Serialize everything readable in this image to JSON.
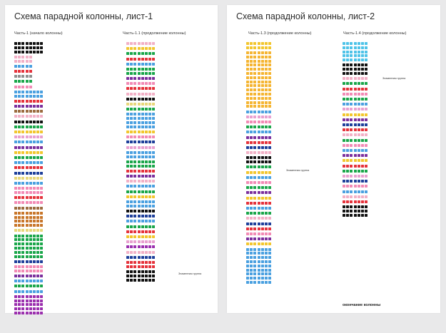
{
  "sheets": [
    {
      "title": "Схема парадной колонны, лист-1",
      "parts": [
        {
          "label": "Часть-1 (начало колонны)"
        },
        {
          "label": "Часть-1.1 (продолжение колонны)"
        }
      ]
    },
    {
      "title": "Схема парадной колонны, лист-2",
      "parts": [
        {
          "label": "Часть-1.3 (продолжение колонны)"
        },
        {
          "label": "Часть-1.4 (продолжение колонны)"
        }
      ]
    }
  ],
  "columns": [
    {
      "sheet": 0,
      "row_groups": [
        {
          "color": "#111111",
          "rows": 3,
          "n": 8
        },
        {
          "color": "#f2b0c6",
          "rows": 2,
          "n": 5
        },
        {
          "color": "#4aa0e0",
          "rows": 1,
          "n": 5
        },
        {
          "color": "#e5323b",
          "rows": 1,
          "n": 5
        },
        {
          "color": "#8f8f8f",
          "rows": 1,
          "n": 5
        },
        {
          "color": "#1aa64a",
          "rows": 1,
          "n": 5
        },
        {
          "color": "#f28ab5",
          "rows": 1,
          "n": 5
        },
        {
          "color": "#4aa0e0",
          "rows": 2,
          "n": 8
        },
        {
          "color": "#e5323b",
          "rows": 1,
          "n": 8
        },
        {
          "color": "#7b2f9d",
          "rows": 1,
          "n": 8
        },
        {
          "color": "#9c6b3f",
          "rows": 1,
          "n": 8
        },
        {
          "color": "#f2b0c6",
          "rows": 1,
          "n": 8
        },
        {
          "color": "#111111",
          "rows": 1,
          "n": 8
        },
        {
          "color": "#1aa64a",
          "rows": 1,
          "n": 8
        },
        {
          "color": "#f2c62e",
          "rows": 1,
          "n": 8
        },
        {
          "color": "#e8a0d0",
          "rows": 1,
          "n": 8
        },
        {
          "color": "#4aa0e0",
          "rows": 1,
          "n": 8
        },
        {
          "color": "#7b2f9d",
          "rows": 1,
          "n": 8
        },
        {
          "color": "#f2c62e",
          "rows": 1,
          "n": 8
        },
        {
          "color": "#1aa64a",
          "rows": 1,
          "n": 8
        },
        {
          "color": "#4aa0e0",
          "rows": 1,
          "n": 8
        },
        {
          "color": "#e5323b",
          "rows": 1,
          "n": 8
        },
        {
          "color": "#1e3f9a",
          "rows": 1,
          "n": 8
        },
        {
          "color": "#e8d77a",
          "rows": 1,
          "n": 8
        },
        {
          "color": "#4aa0e0",
          "rows": 1,
          "n": 8
        },
        {
          "color": "#f28ab5",
          "rows": 2,
          "n": 8
        },
        {
          "color": "#e5323b",
          "rows": 1,
          "n": 8
        },
        {
          "color": "#f28ab5",
          "rows": 1,
          "n": 8
        },
        {
          "color": "#9c6b3f",
          "rows": 1,
          "n": 8
        },
        {
          "color": "#c8762a",
          "rows": 4,
          "n": 8
        },
        {
          "color": "#e8d77a",
          "rows": 1,
          "n": 8
        },
        {
          "color": "#1aa64a",
          "rows": 6,
          "n": 8
        },
        {
          "color": "#1e3f9a",
          "rows": 1,
          "n": 8
        },
        {
          "color": "#f28ab5",
          "rows": 2,
          "n": 8
        },
        {
          "color": "#7b2f9d",
          "rows": 1,
          "n": 8
        },
        {
          "color": "#4aa0e0",
          "rows": 1,
          "n": 8
        },
        {
          "color": "#1aa64a",
          "rows": 1,
          "n": 8
        },
        {
          "color": "#4aa0e0",
          "rows": 1,
          "n": 8
        },
        {
          "color": "#9b2fae",
          "rows": 5,
          "n": 8
        }
      ]
    },
    {
      "sheet": 0,
      "row_groups": [
        {
          "color": "#f2b0c6",
          "rows": 1,
          "n": 8
        },
        {
          "color": "#f2c62e",
          "rows": 1,
          "n": 8
        },
        {
          "color": "#1aa64a",
          "rows": 1,
          "n": 8
        },
        {
          "color": "#e5323b",
          "rows": 1,
          "n": 8
        },
        {
          "color": "#4aa0e0",
          "rows": 1,
          "n": 8
        },
        {
          "color": "#1aa64a",
          "rows": 2,
          "n": 8
        },
        {
          "color": "#7b2f9d",
          "rows": 1,
          "n": 8
        },
        {
          "color": "#f28ab5",
          "rows": 1,
          "n": 8
        },
        {
          "color": "#e5323b",
          "rows": 1,
          "n": 8
        },
        {
          "color": "#f2b0c6",
          "rows": 1,
          "n": 8
        },
        {
          "color": "#111111",
          "rows": 1,
          "n": 8
        },
        {
          "color": "#e8d77a",
          "rows": 1,
          "n": 8
        },
        {
          "color": "#1aa64a",
          "rows": 1,
          "n": 8
        },
        {
          "color": "#4aa0e0",
          "rows": 4,
          "n": 8
        },
        {
          "color": "#f2c62e",
          "rows": 1,
          "n": 8
        },
        {
          "color": "#f28ab5",
          "rows": 1,
          "n": 8
        },
        {
          "color": "#1e3f9a",
          "rows": 1,
          "n": 8
        },
        {
          "color": "#e8a0d0",
          "rows": 1,
          "n": 8
        },
        {
          "color": "#4aa0e0",
          "rows": 2,
          "n": 8
        },
        {
          "color": "#1aa64a",
          "rows": 2,
          "n": 8
        },
        {
          "color": "#e5323b",
          "rows": 1,
          "n": 8
        },
        {
          "color": "#7b2f9d",
          "rows": 1,
          "n": 8
        },
        {
          "color": "#f2b0c6",
          "rows": 1,
          "n": 8
        },
        {
          "color": "#4aa0e0",
          "rows": 1,
          "n": 8
        },
        {
          "color": "#1aa64a",
          "rows": 1,
          "n": 8
        },
        {
          "color": "#f2c62e",
          "rows": 1,
          "n": 8
        },
        {
          "color": "#4aa0e0",
          "rows": 2,
          "n": 8
        },
        {
          "color": "#111111",
          "rows": 1,
          "n": 8
        },
        {
          "color": "#1e3f9a",
          "rows": 1,
          "n": 8
        },
        {
          "color": "#4aa0e0",
          "rows": 1,
          "n": 8
        },
        {
          "color": "#1aa64a",
          "rows": 1,
          "n": 8
        },
        {
          "color": "#e5323b",
          "rows": 1,
          "n": 8
        },
        {
          "color": "#f2c62e",
          "rows": 1,
          "n": 8
        },
        {
          "color": "#e8a0d0",
          "rows": 1,
          "n": 8
        },
        {
          "color": "#9b2fae",
          "rows": 1,
          "n": 8
        },
        {
          "color": "#f2b0c6",
          "rows": 1,
          "n": 8
        },
        {
          "color": "#1e3f9a",
          "rows": 1,
          "n": 8
        },
        {
          "color": "#e5323b",
          "rows": 2,
          "n": 8
        },
        {
          "color": "#111111",
          "rows": 3,
          "n": 8
        }
      ]
    },
    {
      "sheet": 1,
      "row_groups": [
        {
          "color": "#f2c62e",
          "rows": 2,
          "n": 7
        },
        {
          "color": "#f5b532",
          "rows": 14,
          "n": 7
        },
        {
          "color": "#4aa0e0",
          "rows": 1,
          "n": 7
        },
        {
          "color": "#e8a0d0",
          "rows": 1,
          "n": 7
        },
        {
          "color": "#f28ab5",
          "rows": 1,
          "n": 7
        },
        {
          "color": "#1aa64a",
          "rows": 1,
          "n": 7
        },
        {
          "color": "#4aa0e0",
          "rows": 1,
          "n": 7
        },
        {
          "color": "#7b2f9d",
          "rows": 1,
          "n": 7
        },
        {
          "color": "#e5323b",
          "rows": 1,
          "n": 7
        },
        {
          "color": "#1e3f9a",
          "rows": 1,
          "n": 7
        },
        {
          "color": "#f2b0c6",
          "rows": 1,
          "n": 7
        },
        {
          "color": "#111111",
          "rows": 2,
          "n": 7
        },
        {
          "color": "#1aa64a",
          "rows": 1,
          "n": 7
        },
        {
          "color": "#f2c62e",
          "rows": 1,
          "n": 7
        },
        {
          "color": "#4aa0e0",
          "rows": 1,
          "n": 7
        },
        {
          "color": "#f28ab5",
          "rows": 1,
          "n": 7
        },
        {
          "color": "#1aa64a",
          "rows": 1,
          "n": 7
        },
        {
          "color": "#7b2f9d",
          "rows": 1,
          "n": 7
        },
        {
          "color": "#f2c62e",
          "rows": 1,
          "n": 7
        },
        {
          "color": "#e5323b",
          "rows": 1,
          "n": 7
        },
        {
          "color": "#4aa0e0",
          "rows": 1,
          "n": 7
        },
        {
          "color": "#1aa64a",
          "rows": 1,
          "n": 7
        },
        {
          "color": "#f2b0c6",
          "rows": 1,
          "n": 7
        },
        {
          "color": "#1e3f9a",
          "rows": 1,
          "n": 7
        },
        {
          "color": "#e5323b",
          "rows": 1,
          "n": 7
        },
        {
          "color": "#f28ab5",
          "rows": 1,
          "n": 7
        },
        {
          "color": "#7b2f9d",
          "rows": 1,
          "n": 7
        },
        {
          "color": "#f2c62e",
          "rows": 1,
          "n": 7
        },
        {
          "color": "#4aa0e0",
          "rows": 9,
          "n": 7
        }
      ]
    },
    {
      "sheet": 1,
      "row_groups": [
        {
          "color": "#4ec3e8",
          "rows": 5,
          "n": 7
        },
        {
          "color": "#111111",
          "rows": 3,
          "n": 7
        },
        {
          "color": "#f2b0c6",
          "rows": 1,
          "n": 7
        },
        {
          "color": "#1aa64a",
          "rows": 1,
          "n": 7
        },
        {
          "color": "#e5323b",
          "rows": 1,
          "n": 7
        },
        {
          "color": "#f28ab5",
          "rows": 1,
          "n": 7
        },
        {
          "color": "#1aa64a",
          "rows": 1,
          "n": 7
        },
        {
          "color": "#4aa0e0",
          "rows": 1,
          "n": 7
        },
        {
          "color": "#e8a0d0",
          "rows": 1,
          "n": 7
        },
        {
          "color": "#f2c62e",
          "rows": 1,
          "n": 7
        },
        {
          "color": "#7b2f9d",
          "rows": 1,
          "n": 7
        },
        {
          "color": "#1e3f9a",
          "rows": 1,
          "n": 7
        },
        {
          "color": "#e5323b",
          "rows": 1,
          "n": 7
        },
        {
          "color": "#f2b0c6",
          "rows": 1,
          "n": 7
        },
        {
          "color": "#1aa64a",
          "rows": 1,
          "n": 7
        },
        {
          "color": "#f28ab5",
          "rows": 1,
          "n": 7
        },
        {
          "color": "#4aa0e0",
          "rows": 1,
          "n": 7
        },
        {
          "color": "#7b2f9d",
          "rows": 1,
          "n": 7
        },
        {
          "color": "#f2c62e",
          "rows": 1,
          "n": 7
        },
        {
          "color": "#e5323b",
          "rows": 1,
          "n": 7
        },
        {
          "color": "#1aa64a",
          "rows": 1,
          "n": 7
        },
        {
          "color": "#e8a0d0",
          "rows": 1,
          "n": 7
        },
        {
          "color": "#1e3f9a",
          "rows": 1,
          "n": 7
        },
        {
          "color": "#f28ab5",
          "rows": 1,
          "n": 7
        },
        {
          "color": "#4aa0e0",
          "rows": 1,
          "n": 7
        },
        {
          "color": "#f2b0c6",
          "rows": 1,
          "n": 7
        },
        {
          "color": "#e5323b",
          "rows": 1,
          "n": 7
        },
        {
          "color": "#111111",
          "rows": 3,
          "n": 7
        }
      ]
    }
  ],
  "labels": {
    "sheet1_big": "Знаменная группа",
    "sheet2_big_a": "Знаменная группа",
    "sheet2_big_b": "Знаменная группа",
    "end_text": "окончание колонны"
  },
  "colors": {
    "background": "#e9e9ea",
    "sheet": "#ffffff",
    "title": "#2b2b2b",
    "label_accent": "#4a7fc0"
  }
}
